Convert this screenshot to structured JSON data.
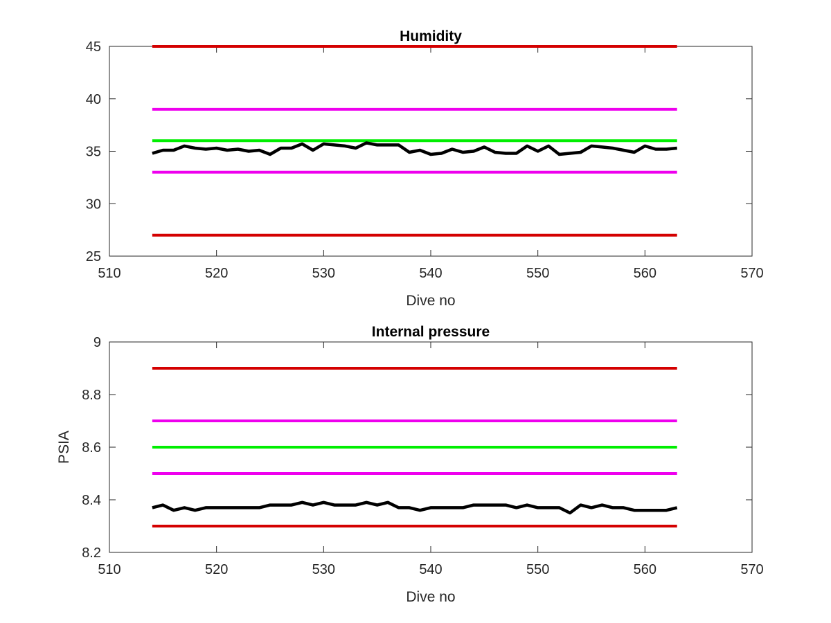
{
  "chart_data": [
    {
      "type": "line",
      "title": "Humidity",
      "xlabel": "Dive no",
      "ylabel": "",
      "xlim": [
        510,
        570
      ],
      "ylim": [
        25,
        45
      ],
      "xticks": [
        510,
        520,
        530,
        540,
        550,
        560,
        570
      ],
      "yticks": [
        25,
        30,
        35,
        40,
        45
      ],
      "grid": false,
      "series": [
        {
          "color": "#d40000",
          "x": [
            514,
            563
          ],
          "values": [
            45,
            45
          ]
        },
        {
          "color": "#ee00ee",
          "x": [
            514,
            563
          ],
          "values": [
            39,
            39
          ]
        },
        {
          "color": "#00ee00",
          "x": [
            514,
            563
          ],
          "values": [
            36,
            36
          ]
        },
        {
          "color": "#ee00ee",
          "x": [
            514,
            563
          ],
          "values": [
            33,
            33
          ]
        },
        {
          "color": "#d40000",
          "x": [
            514,
            563
          ],
          "values": [
            27,
            27
          ]
        },
        {
          "color": "#000000",
          "x": [
            514,
            515,
            516,
            517,
            518,
            519,
            520,
            521,
            522,
            523,
            524,
            525,
            526,
            527,
            528,
            529,
            530,
            531,
            532,
            533,
            534,
            535,
            536,
            537,
            538,
            539,
            540,
            541,
            542,
            543,
            544,
            545,
            546,
            547,
            548,
            549,
            550,
            551,
            552,
            553,
            554,
            555,
            556,
            557,
            558,
            559,
            560,
            561,
            562,
            563
          ],
          "values": [
            34.8,
            35.1,
            35.1,
            35.5,
            35.3,
            35.2,
            35.3,
            35.1,
            35.2,
            35.0,
            35.1,
            34.7,
            35.3,
            35.3,
            35.7,
            35.1,
            35.7,
            35.6,
            35.5,
            35.3,
            35.8,
            35.6,
            35.6,
            35.6,
            34.9,
            35.1,
            34.7,
            34.8,
            35.2,
            34.9,
            35.0,
            35.4,
            34.9,
            34.8,
            34.8,
            35.5,
            35.0,
            35.5,
            34.7,
            34.8,
            34.9,
            35.5,
            35.4,
            35.3,
            35.1,
            34.9,
            35.5,
            35.2,
            35.2,
            35.3
          ]
        }
      ]
    },
    {
      "type": "line",
      "title": "Internal pressure",
      "xlabel": "Dive no",
      "ylabel": "PSIA",
      "xlim": [
        510,
        570
      ],
      "ylim": [
        8.2,
        9.0
      ],
      "xticks": [
        510,
        520,
        530,
        540,
        550,
        560,
        570
      ],
      "yticks": [
        8.2,
        8.4,
        8.6,
        8.8,
        9.0
      ],
      "ytick_labels": [
        "8.2",
        "8.4",
        "8.6",
        "8.8",
        "9"
      ],
      "grid": false,
      "series": [
        {
          "color": "#d40000",
          "x": [
            514,
            563
          ],
          "values": [
            8.9,
            8.9
          ]
        },
        {
          "color": "#ee00ee",
          "x": [
            514,
            563
          ],
          "values": [
            8.7,
            8.7
          ]
        },
        {
          "color": "#00ee00",
          "x": [
            514,
            563
          ],
          "values": [
            8.6,
            8.6
          ]
        },
        {
          "color": "#ee00ee",
          "x": [
            514,
            563
          ],
          "values": [
            8.5,
            8.5
          ]
        },
        {
          "color": "#d40000",
          "x": [
            514,
            563
          ],
          "values": [
            8.3,
            8.3
          ]
        },
        {
          "color": "#000000",
          "x": [
            514,
            515,
            516,
            517,
            518,
            519,
            520,
            521,
            522,
            523,
            524,
            525,
            526,
            527,
            528,
            529,
            530,
            531,
            532,
            533,
            534,
            535,
            536,
            537,
            538,
            539,
            540,
            541,
            542,
            543,
            544,
            545,
            546,
            547,
            548,
            549,
            550,
            551,
            552,
            553,
            554,
            555,
            556,
            557,
            558,
            559,
            560,
            561,
            562,
            563
          ],
          "values": [
            8.37,
            8.38,
            8.36,
            8.37,
            8.36,
            8.37,
            8.37,
            8.37,
            8.37,
            8.37,
            8.37,
            8.38,
            8.38,
            8.38,
            8.39,
            8.38,
            8.39,
            8.38,
            8.38,
            8.38,
            8.39,
            8.38,
            8.39,
            8.37,
            8.37,
            8.36,
            8.37,
            8.37,
            8.37,
            8.37,
            8.38,
            8.38,
            8.38,
            8.38,
            8.37,
            8.38,
            8.37,
            8.37,
            8.37,
            8.35,
            8.38,
            8.37,
            8.38,
            8.37,
            8.37,
            8.36,
            8.36,
            8.36,
            8.36,
            8.37
          ]
        }
      ]
    }
  ]
}
